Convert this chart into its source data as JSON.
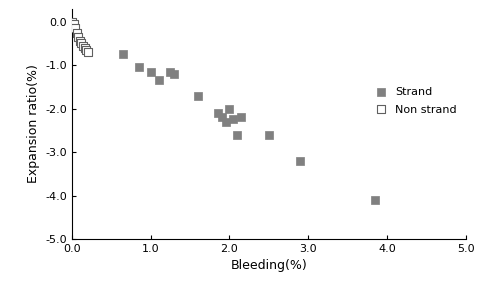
{
  "strand_x": [
    0.65,
    0.85,
    1.0,
    1.1,
    1.25,
    1.3,
    1.6,
    1.85,
    1.9,
    1.95,
    2.0,
    2.05,
    2.1,
    2.15,
    2.5,
    2.9,
    3.85
  ],
  "strand_y": [
    -0.75,
    -1.05,
    -1.15,
    -1.35,
    -1.15,
    -1.2,
    -1.7,
    -2.1,
    -2.2,
    -2.3,
    -2.0,
    -2.25,
    -2.6,
    -2.2,
    -2.6,
    -3.2,
    -4.1
  ],
  "nonstrand_x": [
    0.0,
    0.02,
    0.04,
    0.06,
    0.08,
    0.1,
    0.12,
    0.14,
    0.16,
    0.18,
    0.2
  ],
  "nonstrand_y": [
    0.0,
    -0.05,
    -0.15,
    -0.25,
    -0.35,
    -0.45,
    -0.5,
    -0.55,
    -0.6,
    -0.65,
    -0.7
  ],
  "xlabel": "Bleeding(%)",
  "ylabel": "Expansion ratio(%)",
  "xlim": [
    0.0,
    5.0
  ],
  "ylim": [
    -5.0,
    0.3
  ],
  "xticks": [
    0.0,
    1.0,
    2.0,
    3.0,
    4.0,
    5.0
  ],
  "yticks": [
    0.0,
    -1.0,
    -2.0,
    -3.0,
    -4.0,
    -5.0
  ],
  "strand_color": "#808080",
  "nonstrand_edgecolor": "#606060",
  "marker_size": 28,
  "legend_strand": "Strand",
  "legend_nonstrand": "Non strand",
  "background_color": "#ffffff",
  "xlabel_fontsize": 9,
  "ylabel_fontsize": 9,
  "tick_fontsize": 8,
  "legend_fontsize": 8
}
